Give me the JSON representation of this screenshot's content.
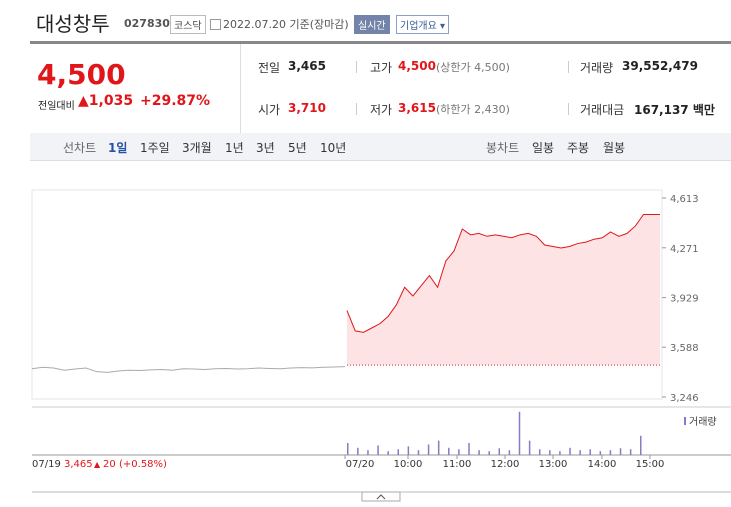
{
  "header": {
    "name": "대성창투",
    "code": "027830",
    "market": "코스닥",
    "date": "2022.07.20 기준(장마감)",
    "realtime": "실시간",
    "company": "기업개요"
  },
  "quote": {
    "price": "4,500",
    "change_label": "전일대비",
    "change": "1,035",
    "rate": "+29.87%",
    "rows": [
      [
        {
          "label": "전일",
          "value": "3,465"
        },
        {
          "label": "고가",
          "value": "4,500",
          "note": "(상한가 4,500)"
        },
        {
          "label": "거래량",
          "value": "39,552,479"
        }
      ],
      [
        {
          "label": "시가",
          "value": "3,710"
        },
        {
          "label": "저가",
          "value": "3,615",
          "note": "(하한가 2,430)"
        },
        {
          "label": "거래대금",
          "value": "167,137 백만"
        }
      ]
    ]
  },
  "tabs": {
    "line_label": "선차트",
    "line": [
      "1일",
      "1주일",
      "3개월",
      "1년",
      "3년",
      "5년",
      "10년"
    ],
    "candle_label": "봉차트",
    "candle": [
      "일봉",
      "주봉",
      "월봉"
    ]
  },
  "chart_data": {
    "type": "line",
    "ylim": [
      3246,
      4613
    ],
    "yticks": [
      {
        "value": 3246,
        "label": "3,246"
      },
      {
        "value": 3588,
        "label": "3,588"
      },
      {
        "value": 3929,
        "label": "3,929"
      },
      {
        "value": 4271,
        "label": "4,271"
      },
      {
        "value": 4613,
        "label": "4,613"
      }
    ],
    "x_labels": [
      "07/20",
      "10:00",
      "11:00",
      "12:00",
      "13:00",
      "14:00",
      "15:00"
    ],
    "baseline": 3465,
    "series": [
      {
        "color": "#aaaaaa",
        "values": [
          3440,
          3450,
          3445,
          3430,
          3438,
          3445,
          3420,
          3415,
          3425,
          3430,
          3428,
          3432,
          3435,
          3430,
          3440,
          3438,
          3435,
          3440,
          3442,
          3438,
          3440,
          3445,
          3442,
          3440,
          3445,
          3448,
          3446,
          3450,
          3452,
          3455
        ]
      },
      {
        "color": "#e0161b",
        "values": [
          3840,
          3700,
          3690,
          3720,
          3750,
          3800,
          3880,
          4000,
          3940,
          4010,
          4080,
          4000,
          4180,
          4250,
          4400,
          4360,
          4370,
          4350,
          4360,
          4350,
          4340,
          4360,
          4370,
          4350,
          4290,
          4280,
          4270,
          4280,
          4300,
          4310,
          4330,
          4340,
          4380,
          4350,
          4370,
          4420,
          4500,
          4500,
          4500
        ]
      }
    ],
    "volume_label": "거래량",
    "vlim": [
      0,
      100
    ],
    "volume": [
      25,
      15,
      10,
      20,
      8,
      12,
      18,
      10,
      22,
      30,
      15,
      12,
      25,
      10,
      8,
      14,
      10,
      90,
      30,
      12,
      10,
      8,
      15,
      10,
      12,
      8,
      10,
      14,
      12,
      40
    ],
    "footer": {
      "date": "07/19",
      "close": "3,465",
      "change": "20",
      "rate": "(+0.58%)"
    }
  }
}
